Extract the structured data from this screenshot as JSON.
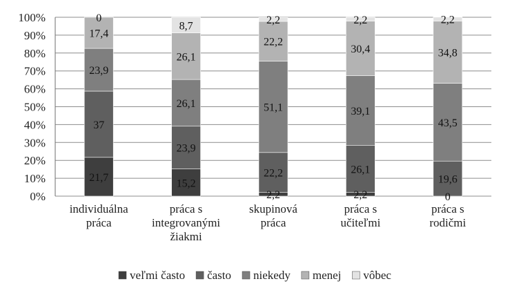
{
  "chart_data": {
    "type": "bar",
    "stacked": true,
    "percent": true,
    "categories": [
      [
        "individuálna",
        "práca"
      ],
      [
        "práca s",
        "integrovanými",
        "žiakmi"
      ],
      [
        "skupinová",
        "práca"
      ],
      [
        "práca s",
        "učiteľmi"
      ],
      [
        "práca s",
        "rodičmi"
      ]
    ],
    "series": [
      {
        "name": "veľmi často",
        "color": "#3e3e3e",
        "values": [
          21.7,
          15.2,
          2.2,
          2.2,
          0
        ],
        "labels": [
          "21,7",
          "15,2",
          "2,2",
          "2,2",
          "0"
        ]
      },
      {
        "name": "často",
        "color": "#5f5f5f",
        "values": [
          37,
          23.9,
          22.2,
          26.1,
          19.6
        ],
        "labels": [
          "37",
          "23,9",
          "22,2",
          "26,1",
          "19,6"
        ]
      },
      {
        "name": "niekedy",
        "color": "#7f7f7f",
        "values": [
          23.9,
          26.1,
          51.1,
          39.1,
          43.5
        ],
        "labels": [
          "23,9",
          "26,1",
          "51,1",
          "39,1",
          "43,5"
        ]
      },
      {
        "name": "menej",
        "color": "#b3b3b3",
        "values": [
          17.4,
          26.1,
          22.2,
          30.4,
          34.8
        ],
        "labels": [
          "17,4",
          "26,1",
          "22,2",
          "30,4",
          "34,8"
        ]
      },
      {
        "name": "vôbec",
        "color": "#e3e3e3",
        "values": [
          0,
          8.7,
          2.2,
          2.2,
          2.2
        ],
        "labels": [
          "0",
          "8,7",
          "2,2",
          "2,2",
          "2,2"
        ]
      }
    ],
    "yticks": [
      "0%",
      "10%",
      "20%",
      "30%",
      "40%",
      "50%",
      "60%",
      "70%",
      "80%",
      "90%",
      "100%"
    ],
    "ylim": [
      0,
      100
    ],
    "grid": true,
    "legend": "bottom",
    "title": "",
    "xlabel": "",
    "ylabel": ""
  }
}
